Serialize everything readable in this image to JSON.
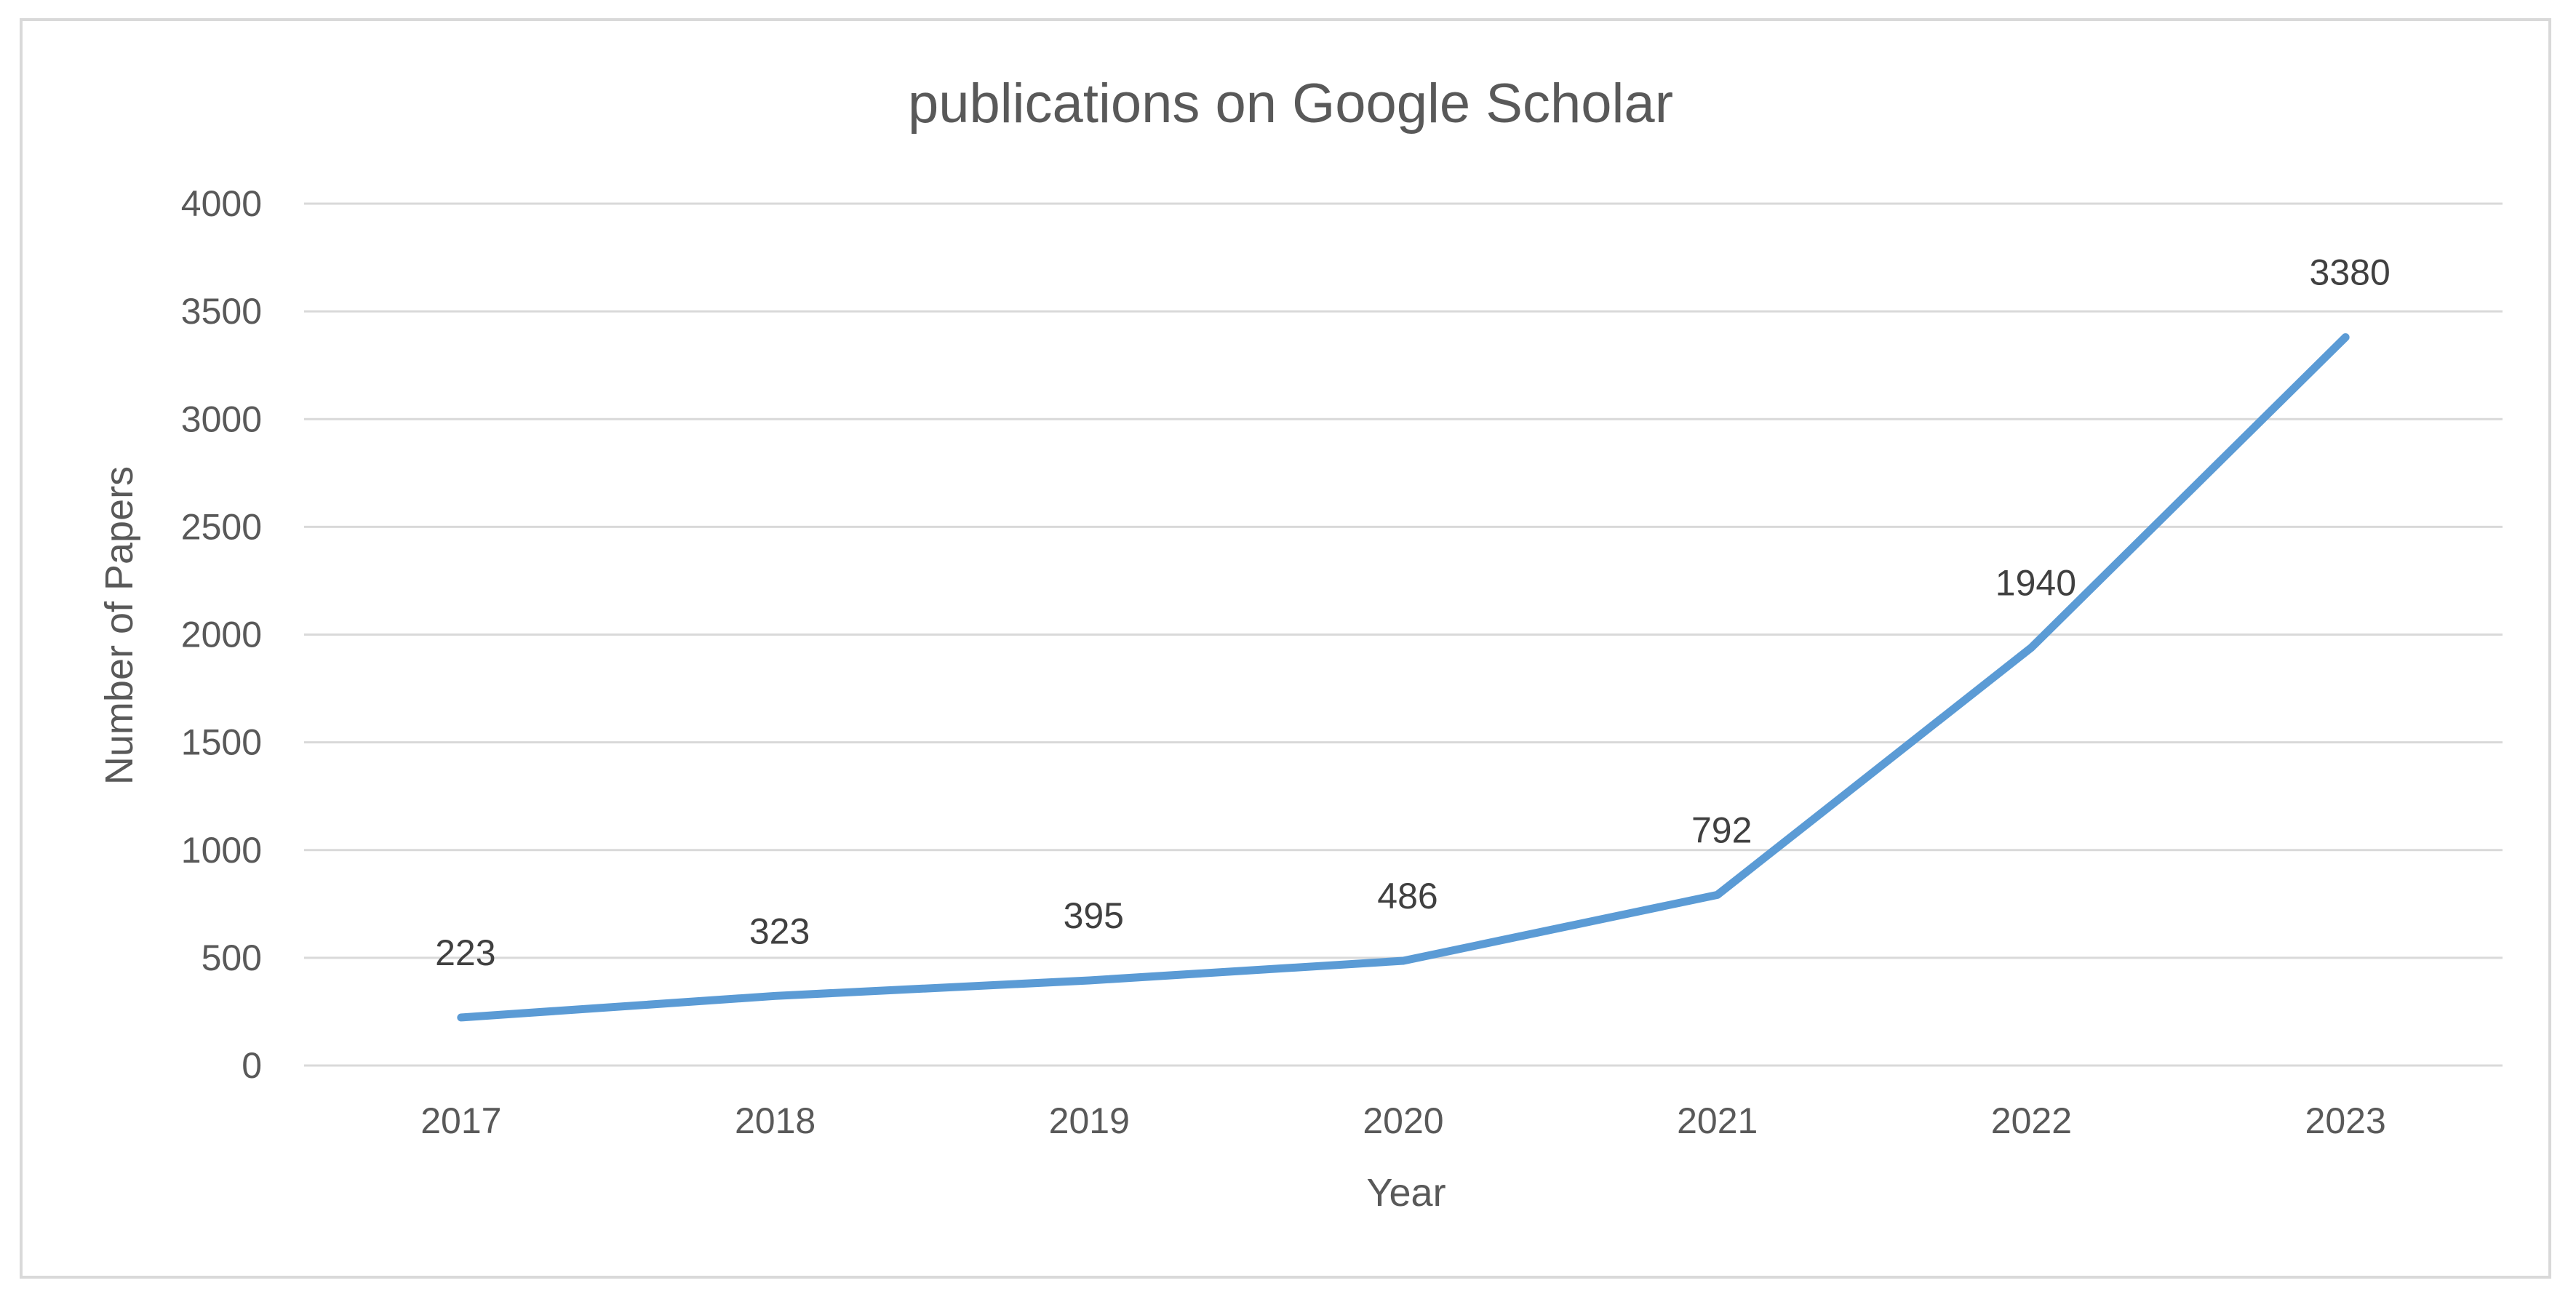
{
  "chart_data": {
    "type": "line",
    "title": "publications on Google Scholar",
    "xlabel": "Year",
    "ylabel": "Number of Papers",
    "categories": [
      "2017",
      "2018",
      "2019",
      "2020",
      "2021",
      "2022",
      "2023"
    ],
    "series": [
      {
        "values": [
          223,
          323,
          395,
          486,
          792,
          1940,
          3380
        ],
        "color": "#5b9bd5"
      }
    ],
    "data_labels": [
      "223",
      "323",
      "395",
      "486",
      "792",
      "1940",
      "3380"
    ],
    "ylim": [
      0,
      4000
    ],
    "y_ticks": [
      "0",
      "500",
      "1000",
      "1500",
      "2000",
      "2500",
      "3000",
      "3500",
      "4000"
    ],
    "grid": "horizontal",
    "legend": "none",
    "colors": {
      "gridline": "#d9d9d9",
      "frame": "#d9d9d9",
      "text": "#595959",
      "data_label_text": "#404040"
    }
  }
}
